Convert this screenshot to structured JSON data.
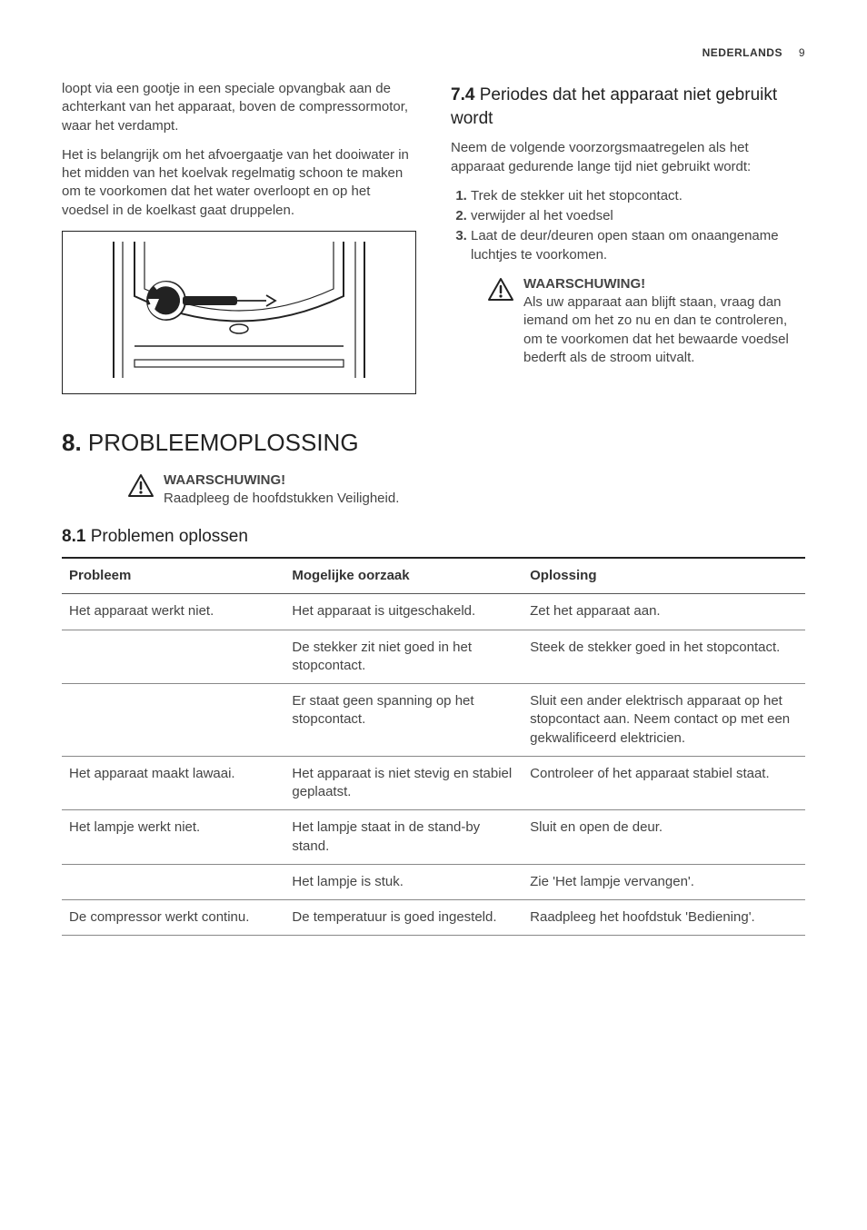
{
  "header": {
    "lang": "NEDERLANDS",
    "page": "9"
  },
  "left": {
    "p1": "loopt via een gootje in een speciale opvangbak aan de achterkant van het apparaat, boven de compressormotor, waar het verdampt.",
    "p2": "Het is belangrijk om het afvoergaatje van het dooiwater in het midden van het koelvak regelmatig schoon te maken om te voorkomen dat het water overloopt en op het voedsel in de koelkast gaat druppelen."
  },
  "right": {
    "sub74_num": "7.4",
    "sub74_text": " Periodes dat het apparaat niet gebruikt wordt",
    "p1": "Neem de volgende voorzorgsmaatregelen als het apparaat gedurende lange tijd niet gebruikt wordt:",
    "steps": [
      "Trek de stekker uit het stopcontact.",
      "verwijder al het voedsel",
      "Laat de deur/deuren open staan om onaangename luchtjes te voorkomen."
    ],
    "warn_title": "WAARSCHUWING!",
    "warn_body": "Als uw apparaat aan blijft staan, vraag dan iemand om het zo nu en dan te controleren, om te voorkomen dat het bewaarde voedsel bederft als de stroom uitvalt."
  },
  "section8": {
    "num": "8.",
    "title": " PROBLEEMOPLOSSING",
    "warn_title": "WAARSCHUWING!",
    "warn_body": "Raadpleeg de hoofdstukken Veiligheid.",
    "sub81_num": "8.1",
    "sub81_text": " Problemen oplossen",
    "columns": [
      "Probleem",
      "Mogelijke oorzaak",
      "Oplossing"
    ],
    "rows": [
      [
        "Het apparaat werkt niet.",
        "Het apparaat is uitgescha­keld.",
        "Zet het apparaat aan."
      ],
      [
        "",
        "De stekker zit niet goed in het stopcontact.",
        "Steek de stekker goed in het stopcontact."
      ],
      [
        "",
        "Er staat geen spanning op het stopcontact.",
        "Sluit een ander elektrisch apparaat op het stopcon­tact aan. Neem contact op met een gekwalificeerd elektricien."
      ],
      [
        "Het apparaat maakt lawaai.",
        "Het apparaat is niet stevig en stabiel geplaatst.",
        "Controleer of het apparaat stabiel staat."
      ],
      [
        "Het lampje werkt niet.",
        "Het lampje staat in de stand-by stand.",
        "Sluit en open de deur."
      ],
      [
        "",
        "Het lampje is stuk.",
        "Zie 'Het lampje vervangen'."
      ],
      [
        "De compressor werkt con­tinu.",
        "De temperatuur is goed in­gesteld.",
        "Raadpleeg het hoofdstuk 'Bediening'."
      ]
    ]
  },
  "colors": {
    "text": "#444",
    "heading": "#222",
    "border": "#222"
  }
}
